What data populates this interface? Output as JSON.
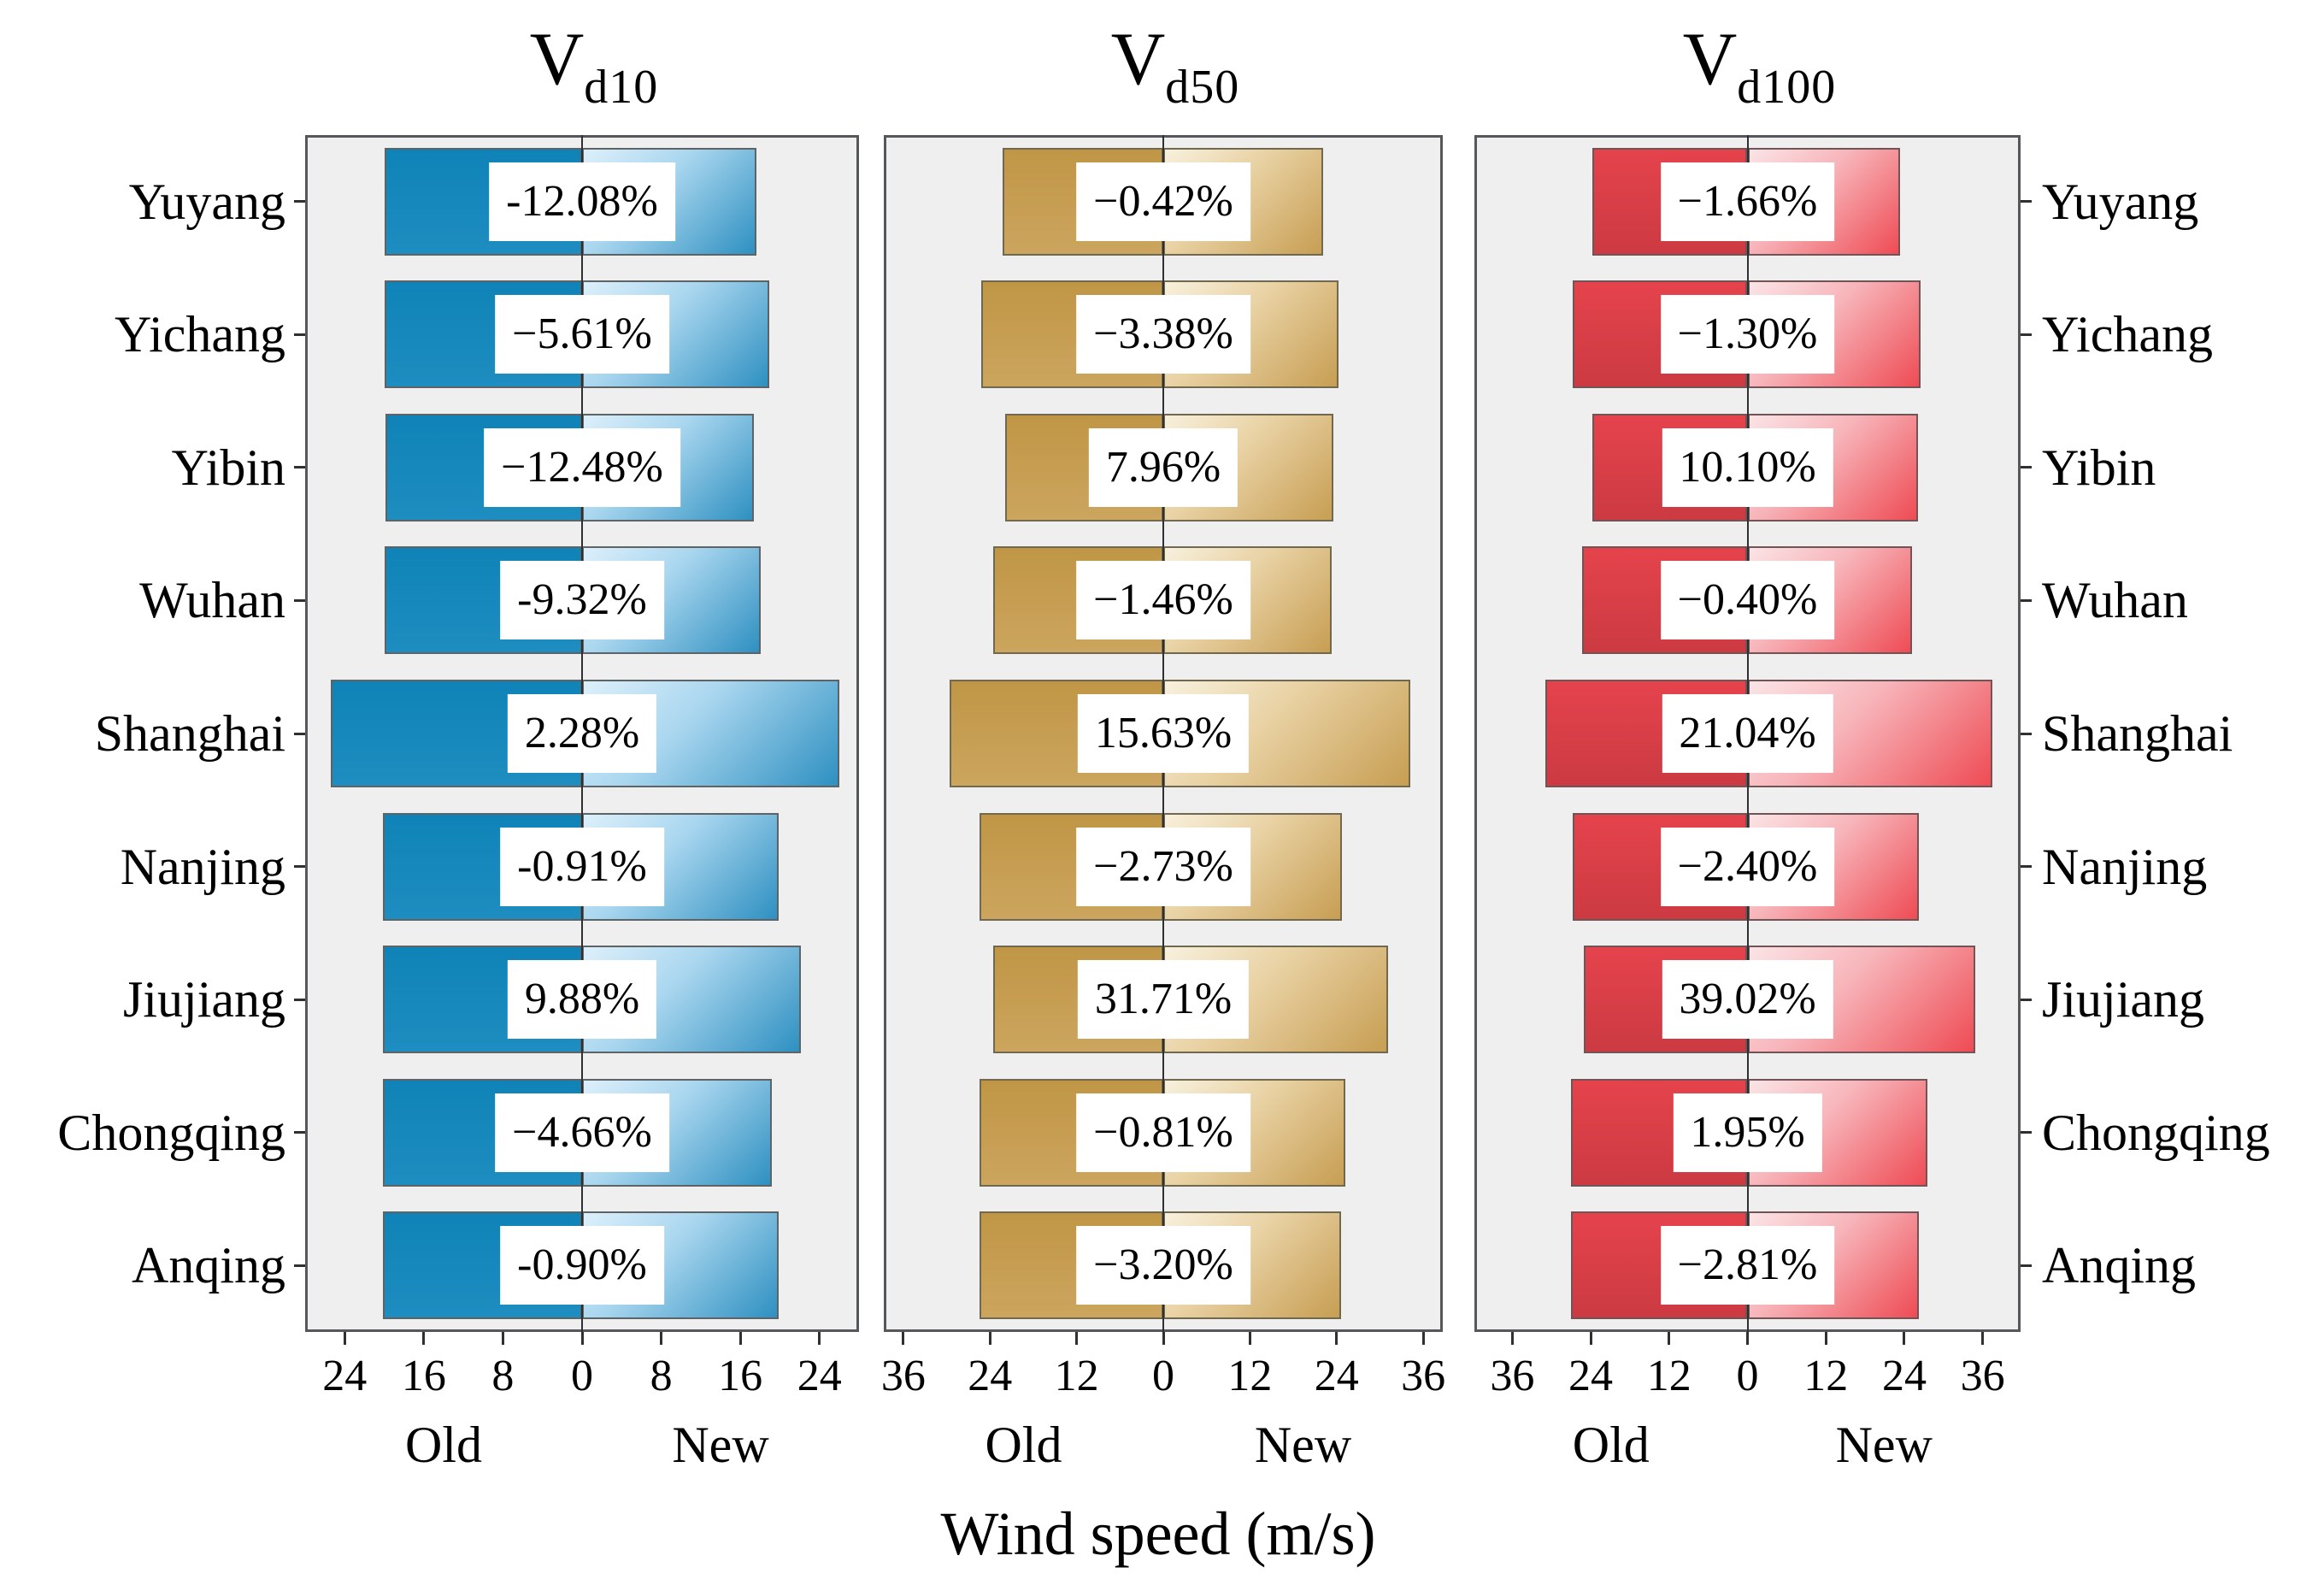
{
  "ui": {
    "old_label": "Old",
    "new_label": "New",
    "xlabel": "Wind speed (m/s)",
    "background_color": "#ffffff",
    "panel_background": "#EFEFF0",
    "frame_color": "#55575A",
    "axis_color": "#2E3032",
    "label_box_color": "#ffffff",
    "text_color": "#000000"
  },
  "style": {
    "palettes": {
      "blue": {
        "solid_from": "#0F83B7",
        "solid_to": "#1E8DC0",
        "grad_light": "#DDF0FB",
        "grad_mid": "#A9D6EF",
        "grad_dark": "#2E90C1",
        "border": "#5E6366"
      },
      "tan": {
        "solid_from": "#C09646",
        "solid_to": "#CCA55E",
        "grad_light": "#F8F1DE",
        "grad_mid": "#E9D2A4",
        "grad_dark": "#C79E53",
        "border": "#70684F"
      },
      "red": {
        "solid_from": "#E5434C",
        "solid_to": "#CC3A42",
        "grad_light": "#FBE4E6",
        "grad_mid": "#F7B5BA",
        "grad_dark": "#EF4B54",
        "border": "#705456"
      }
    }
  },
  "chart_data": [
    {
      "type": "bar",
      "orientation": "horizontal-diverging",
      "id": "vd10",
      "title_main": "V",
      "title_sub": "d10",
      "palette": "blue",
      "categories": [
        "Yuyang",
        "Yichang",
        "Yibin",
        "Wuhan",
        "Shanghai",
        "Nanjing",
        "Jiujiang",
        "Chongqing",
        "Anqing"
      ],
      "series": [
        {
          "name": "Old",
          "values": [
            20.0,
            20.0,
            19.9,
            20.0,
            25.4,
            20.1,
            20.1,
            20.1,
            20.1
          ]
        },
        {
          "name": "New",
          "values": [
            17.6,
            18.9,
            17.4,
            18.1,
            26.0,
            19.9,
            22.1,
            19.2,
            19.9
          ]
        }
      ],
      "percent_labels": [
        "-12.08%",
        "−5.61%",
        "−12.48%",
        "-9.32%",
        "2.28%",
        "-0.91%",
        "9.88%",
        "−4.66%",
        "-0.90%"
      ],
      "tick_labels": [
        "24",
        "16",
        "8",
        "0",
        "8",
        "16",
        "24"
      ],
      "tick_values": [
        -24,
        -16,
        -8,
        0,
        8,
        16,
        24
      ],
      "xlim": [
        -28,
        28
      ],
      "grid": false,
      "legend": false,
      "city_labels_side": "left"
    },
    {
      "type": "bar",
      "orientation": "horizontal-diverging",
      "id": "vd50",
      "title_main": "V",
      "title_sub": "d50",
      "palette": "tan",
      "categories": [
        "Yuyang",
        "Yichang",
        "Yibin",
        "Wuhan",
        "Shanghai",
        "Nanjing",
        "Jiujiang",
        "Chongqing",
        "Anqing"
      ],
      "series": [
        {
          "name": "Old",
          "values": [
            22.2,
            25.2,
            21.9,
            23.6,
            29.6,
            25.4,
            23.6,
            25.4,
            25.4
          ]
        },
        {
          "name": "New",
          "values": [
            22.1,
            24.3,
            23.6,
            23.3,
            34.2,
            24.7,
            31.1,
            25.2,
            24.6
          ]
        }
      ],
      "percent_labels": [
        "−0.42%",
        "−3.38%",
        "7.96%",
        "−1.46%",
        "15.63%",
        "−2.73%",
        "31.71%",
        "−0.81%",
        "−3.20%"
      ],
      "tick_labels": [
        "36",
        "24",
        "12",
        "0",
        "12",
        "24",
        "36"
      ],
      "tick_values": [
        -36,
        -24,
        -12,
        0,
        12,
        24,
        36
      ],
      "xlim": [
        -38.7,
        38.7
      ],
      "grid": false,
      "legend": false,
      "city_labels_side": "none"
    },
    {
      "type": "bar",
      "orientation": "horizontal-diverging",
      "id": "vd100",
      "title_main": "V",
      "title_sub": "d100",
      "palette": "red",
      "categories": [
        "Yuyang",
        "Yichang",
        "Yibin",
        "Wuhan",
        "Shanghai",
        "Nanjing",
        "Jiujiang",
        "Chongqing",
        "Anqing"
      ],
      "series": [
        {
          "name": "Old",
          "values": [
            23.7,
            26.8,
            23.7,
            25.3,
            31.0,
            26.8,
            25.1,
            27.0,
            27.0
          ]
        },
        {
          "name": "New",
          "values": [
            23.3,
            26.5,
            26.1,
            25.2,
            37.5,
            26.2,
            34.9,
            27.5,
            26.2
          ]
        }
      ],
      "percent_labels": [
        "−1.66%",
        "−1.30%",
        "10.10%",
        "−0.40%",
        "21.04%",
        "−2.40%",
        "39.02%",
        "1.95%",
        "−2.81%"
      ],
      "tick_labels": [
        "36",
        "24",
        "12",
        "0",
        "12",
        "24",
        "36"
      ],
      "tick_values": [
        -36,
        -24,
        -12,
        0,
        12,
        24,
        36
      ],
      "xlim": [
        -41.8,
        41.8
      ],
      "grid": false,
      "legend": false,
      "city_labels_side": "right"
    }
  ]
}
